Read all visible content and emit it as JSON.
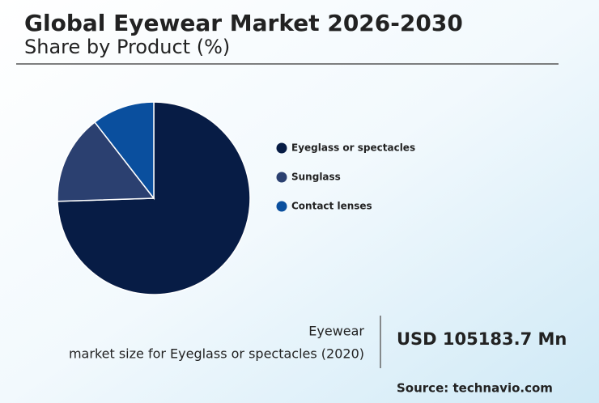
{
  "chart_data": {
    "type": "pie",
    "title": "Global Eyewear Market 2026-2030",
    "subtitle": "Share by Product (%)",
    "categories": [
      "Eyeglass or spectacles",
      "Sunglass",
      "Contact lenses"
    ],
    "values": [
      74.5,
      15,
      10.5
    ],
    "colors": [
      "#071c45",
      "#2b4070",
      "#0a4f9e"
    ],
    "annotation": {
      "line1": "Eyewear",
      "line2": "market size for Eyeglass or spectacles (2020)",
      "value": "USD 105183.7 Mn"
    },
    "source": "Source: technavio.com"
  }
}
